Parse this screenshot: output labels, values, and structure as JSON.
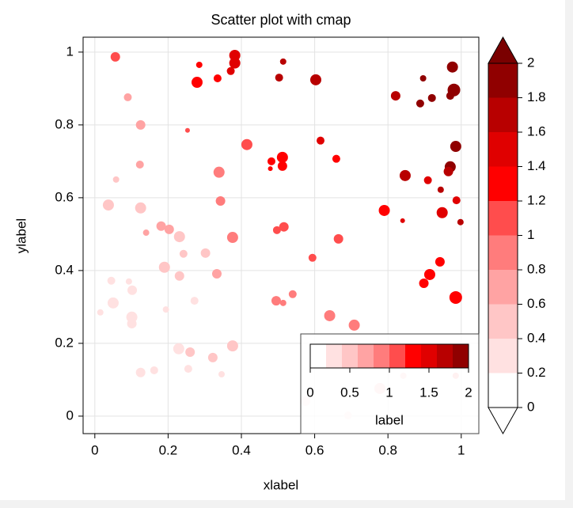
{
  "chart_data": {
    "type": "scatter",
    "title": "Scatter plot with cmap",
    "xlabel": "xlabel",
    "ylabel": "ylabel",
    "xlim": [
      -0.032,
      1.048
    ],
    "ylim": [
      -0.048,
      1.041
    ],
    "xticks": [
      0,
      0.2,
      0.4,
      0.6,
      0.8,
      1
    ],
    "yticks": [
      0,
      0.2,
      0.4,
      0.6,
      0.8,
      1
    ],
    "grid": true,
    "x": [
      0.056,
      0.09,
      0.125,
      0.123,
      0.058,
      0.037,
      0.125,
      0.14,
      0.181,
      0.203,
      0.231,
      0.242,
      0.302,
      0.19,
      0.231,
      0.333,
      0.343,
      0.339,
      0.376,
      0.045,
      0.093,
      0.102,
      0.05,
      0.015,
      0.101,
      0.101,
      0.194,
      0.272,
      0.125,
      0.162,
      0.229,
      0.26,
      0.255,
      0.322,
      0.346,
      0.376,
      0.253,
      0.279,
      0.285,
      0.335,
      0.371,
      0.382,
      0.382,
      0.514,
      0.503,
      0.603,
      0.415,
      0.482,
      0.479,
      0.512,
      0.512,
      0.616,
      0.659,
      0.497,
      0.516,
      0.594,
      0.665,
      0.495,
      0.514,
      0.54,
      0.641,
      0.708,
      0.821,
      0.888,
      0.896,
      0.92,
      0.976,
      0.98,
      0.97,
      0.985,
      0.97,
      0.965,
      0.847,
      0.909,
      0.944,
      0.987,
      0.79,
      0.84,
      0.948,
      0.998,
      0.942,
      0.914,
      0.898,
      0.985,
      0.691,
      0.778,
      0.575,
      0.842,
      0.985
    ],
    "y": [
      0.987,
      0.876,
      0.8,
      0.691,
      0.65,
      0.58,
      0.572,
      0.504,
      0.522,
      0.513,
      0.493,
      0.446,
      0.448,
      0.409,
      0.385,
      0.391,
      0.591,
      0.67,
      0.491,
      0.372,
      0.37,
      0.346,
      0.311,
      0.285,
      0.272,
      0.254,
      0.293,
      0.317,
      0.12,
      0.126,
      0.185,
      0.176,
      0.13,
      0.161,
      0.115,
      0.193,
      0.785,
      0.917,
      0.965,
      0.928,
      0.948,
      0.97,
      0.991,
      0.974,
      0.93,
      0.924,
      0.746,
      0.7,
      0.68,
      0.711,
      0.687,
      0.757,
      0.707,
      0.511,
      0.52,
      0.435,
      0.487,
      0.317,
      0.311,
      0.335,
      0.276,
      0.25,
      0.88,
      0.859,
      0.928,
      0.874,
      0.959,
      0.896,
      0.88,
      0.741,
      0.685,
      0.672,
      0.661,
      0.648,
      0.622,
      0.593,
      0.565,
      0.537,
      0.559,
      0.533,
      0.424,
      0.389,
      0.365,
      0.326,
      0.002,
      0.076,
      0.041,
      0.111,
      0.111
    ],
    "c": [
      1.0,
      0.6,
      0.6,
      0.7,
      0.5,
      0.5,
      0.55,
      0.6,
      0.6,
      0.6,
      0.5,
      0.55,
      0.5,
      0.5,
      0.5,
      0.6,
      0.8,
      0.95,
      0.8,
      0.35,
      0.35,
      0.3,
      0.2,
      0.2,
      0.25,
      0.25,
      0.3,
      0.35,
      0.25,
      0.3,
      0.35,
      0.4,
      0.3,
      0.5,
      0.35,
      0.4,
      1.1,
      1.2,
      1.3,
      1.3,
      1.4,
      1.4,
      1.4,
      1.6,
      1.6,
      1.6,
      1.1,
      1.2,
      1.2,
      1.2,
      1.2,
      1.4,
      1.35,
      1.0,
      1.05,
      1.0,
      1.1,
      0.8,
      0.85,
      0.9,
      0.9,
      0.95,
      1.75,
      1.8,
      1.95,
      1.85,
      1.9,
      1.95,
      1.9,
      1.9,
      1.8,
      1.7,
      1.7,
      1.5,
      1.6,
      1.5,
      1.3,
      1.5,
      1.4,
      1.6,
      1.3,
      1.25,
      1.3,
      1.3,
      0.2,
      0.4,
      0.3,
      0.5,
      0.6
    ],
    "s": [
      144,
      100,
      144,
      100,
      64,
      196,
      196,
      64,
      144,
      144,
      196,
      100,
      144,
      196,
      144,
      144,
      144,
      196,
      196,
      100,
      64,
      144,
      196,
      64,
      196,
      144,
      64,
      100,
      144,
      100,
      196,
      144,
      100,
      144,
      64,
      196,
      36,
      196,
      64,
      100,
      100,
      196,
      196,
      64,
      100,
      196,
      196,
      100,
      36,
      196,
      144,
      100,
      100,
      100,
      144,
      100,
      144,
      144,
      64,
      100,
      196,
      196,
      144,
      100,
      64,
      100,
      196,
      256,
      100,
      196,
      196,
      144,
      196,
      100,
      64,
      100,
      196,
      36,
      196,
      64,
      144,
      196,
      144,
      256,
      100,
      196,
      144,
      64,
      64
    ],
    "colorbar": {
      "ticks": [
        0,
        0.2,
        0.4,
        0.6,
        0.8,
        1,
        1.2,
        1.4,
        1.6,
        1.8,
        2
      ],
      "colors": [
        "#ffffff",
        "#ffe1e1",
        "#ffc6c6",
        "#ffa3a3",
        "#ff7c7c",
        "#ff4d4d",
        "#ff0000",
        "#e00000",
        "#b80000",
        "#900000"
      ],
      "under": "#ffffff",
      "over": "#7a0000"
    },
    "inset_colorbar": {
      "ticks": [
        0,
        0.5,
        1,
        1.5,
        2
      ],
      "label": "label"
    }
  }
}
